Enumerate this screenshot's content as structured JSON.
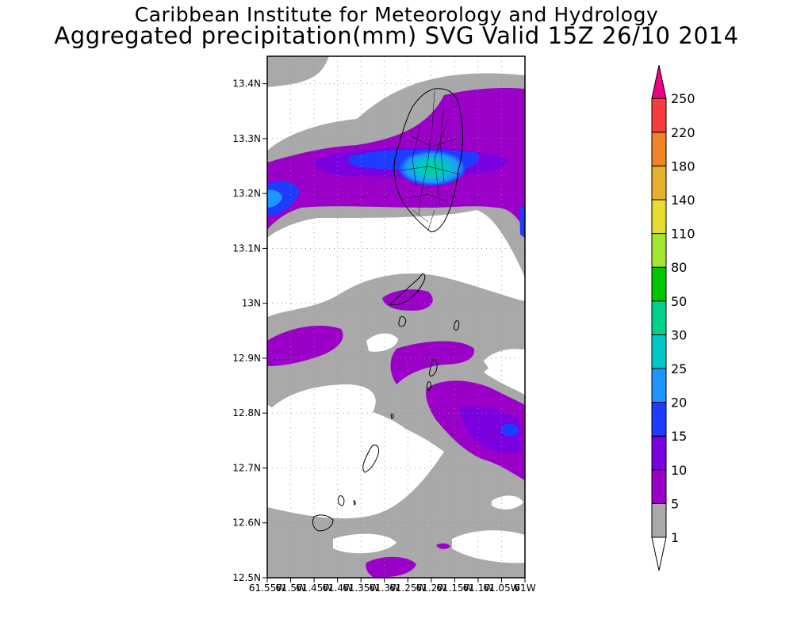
{
  "header": {
    "institution": "Caribbean Institute for Meteorology and Hydrology",
    "product": "Aggregated precipitation(mm) SVG Valid 15Z 26/10 2014"
  },
  "map": {
    "lat_labels": [
      "13.4N",
      "13.3N",
      "13.2N",
      "13.1N",
      "13N",
      "12.9N",
      "12.8N",
      "12.7N",
      "12.6N",
      "12.5N"
    ],
    "lon_labels": [
      "61.55W",
      "61.5W",
      "61.45W",
      "61.4W",
      "61.35W",
      "61.3W",
      "61.25W",
      "61.2W",
      "61.15W",
      "61.1W",
      "61.05W",
      "61W"
    ],
    "lat_range": [
      12.5,
      13.45
    ],
    "lon_range": [
      -61.55,
      -61.0
    ]
  },
  "legend": {
    "levels": [
      "1",
      "5",
      "10",
      "15",
      "20",
      "25",
      "30",
      "50",
      "80",
      "110",
      "140",
      "180",
      "220",
      "250"
    ],
    "colors": [
      "#ffffff",
      "#a9a9a9",
      "#9a00c8",
      "#7a00e0",
      "#1e3cff",
      "#1e96ff",
      "#00c8c8",
      "#00d28c",
      "#00c800",
      "#a0e632",
      "#e6dc32",
      "#e6af2d",
      "#f08228",
      "#fa3c3c",
      "#f00082"
    ]
  }
}
